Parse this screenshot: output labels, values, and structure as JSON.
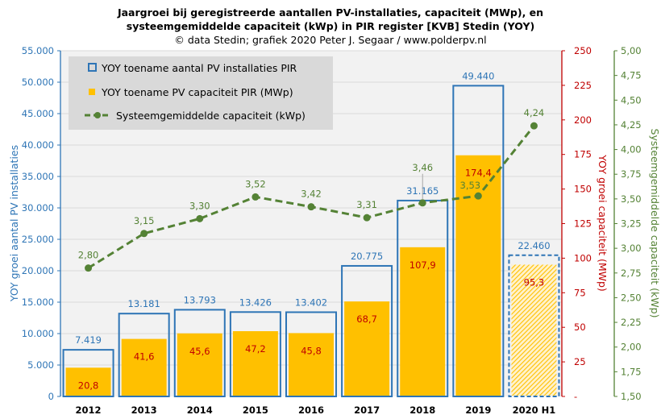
{
  "chart_data": {
    "type": "bar",
    "title": [
      "Jaargroei bij geregistreerde aantallen PV-installaties, capaciteit (MWp), en",
      "systeemgemiddelde capaciteit (kWp) in PIR register [KVB] Stedin (YOY)"
    ],
    "subtitle": "© data Stedin; grafiek 2020 Peter J. Segaar / www.polderpv.nl",
    "categories": [
      "2012",
      "2013",
      "2014",
      "2015",
      "2016",
      "2017",
      "2018",
      "2019",
      "2020 H1"
    ],
    "series": [
      {
        "name": "YOY toename aantal PV installaties PIR",
        "type": "bar-outline",
        "axis": "left",
        "color": "#2E75B6",
        "values": [
          7419,
          13181,
          13793,
          13426,
          13402,
          20775,
          31165,
          49440,
          22460
        ],
        "labels": [
          "7.419",
          "13.181",
          "13.793",
          "13.426",
          "13.402",
          "20.775",
          "31.165",
          "49.440",
          "22.460"
        ],
        "dashed_last": true
      },
      {
        "name": "YOY toename PV capaciteit PIR (MWp)",
        "type": "bar",
        "axis": "right1",
        "color": "#FFC000",
        "label_color": "#C00000",
        "values": [
          20.8,
          41.6,
          45.6,
          47.2,
          45.8,
          68.7,
          107.9,
          174.4,
          95.3
        ],
        "labels": [
          "20,8",
          "41,6",
          "45,6",
          "47,2",
          "45,8",
          "68,7",
          "107,9",
          "174,4",
          "95,3"
        ],
        "hatched_last": true
      },
      {
        "name": "Systeemgemiddelde capaciteit (kWp)",
        "type": "line-dashed",
        "axis": "right2",
        "color": "#548235",
        "values": [
          2.8,
          3.15,
          3.3,
          3.52,
          3.42,
          3.31,
          3.46,
          3.53,
          4.24
        ],
        "labels": [
          "2,80",
          "3,15",
          "3,30",
          "3,52",
          "3,42",
          "3,31",
          "3,46",
          "3,53",
          "4,24"
        ]
      }
    ],
    "axes": {
      "left": {
        "label": "YOY groei aantal PV installaties",
        "range": [
          0,
          55000
        ],
        "ticks": [
          "0",
          "5.000",
          "10.000",
          "15.000",
          "20.000",
          "25.000",
          "30.000",
          "35.000",
          "40.000",
          "45.000",
          "50.000",
          "55.000"
        ],
        "color": "#2E75B6"
      },
      "right1": {
        "label": "YOY groei capaciteit (MWp)",
        "range": [
          0,
          250
        ],
        "ticks": [
          "-",
          "25",
          "50",
          "75",
          "100",
          "125",
          "150",
          "175",
          "200",
          "225",
          "250"
        ],
        "color": "#C00000"
      },
      "right2": {
        "label": "Systeemgemiddelde capaciteit (kWp)",
        "range": [
          1.5,
          5.0
        ],
        "ticks": [
          "1,50",
          "1,75",
          "2,00",
          "2,25",
          "2,50",
          "2,75",
          "3,00",
          "3,25",
          "3,50",
          "3,75",
          "4,00",
          "4,25",
          "4,50",
          "4,75",
          "5,00"
        ],
        "color": "#548235"
      }
    },
    "grid": true,
    "legend_position": "top-left",
    "plot_background": "#F2F2F2",
    "legend_background": "#D9D9D9"
  }
}
